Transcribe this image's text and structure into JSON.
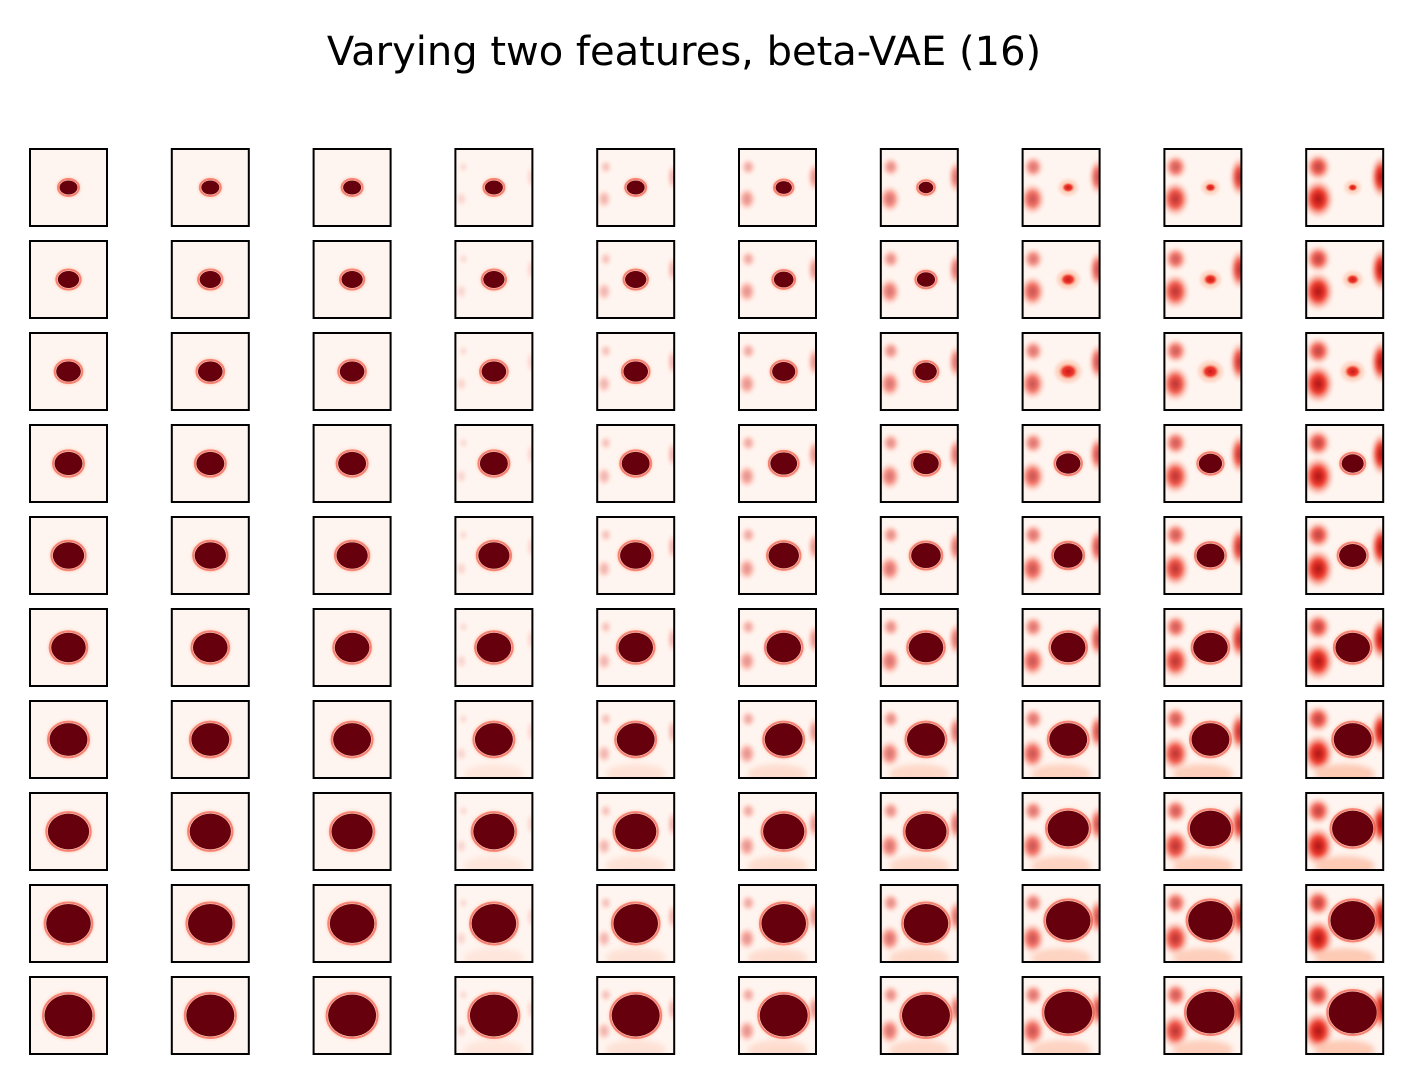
{
  "figure": {
    "title": "Varying two features, beta-VAE (16)"
  },
  "grid": {
    "rows": 10,
    "cols": 10,
    "colormap": "Reds",
    "colors": {
      "background": "#fff5f0",
      "light": "#fcbba1",
      "mid": "#ef3b2c",
      "dark": "#67000d",
      "border": "#000000"
    }
  }
}
